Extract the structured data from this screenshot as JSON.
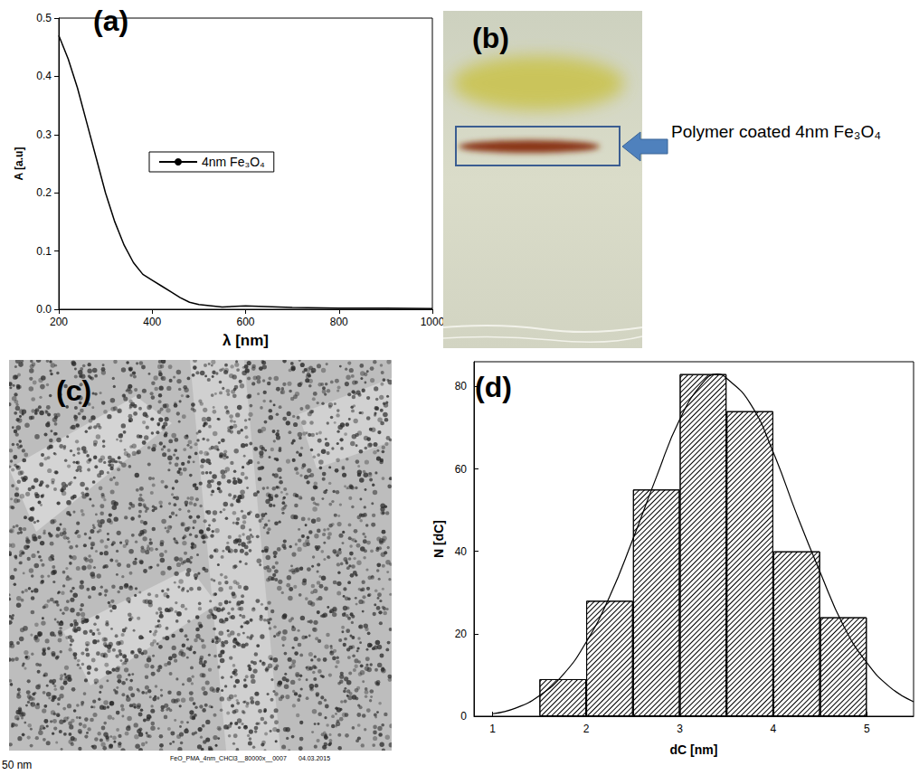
{
  "chart_data": [
    {
      "type": "line",
      "title": "(a)",
      "xlabel": "λ [nm]",
      "ylabel": "A [a.u]",
      "x": [
        200,
        220,
        240,
        260,
        280,
        300,
        320,
        340,
        360,
        380,
        400,
        420,
        440,
        460,
        480,
        500,
        550,
        600,
        700,
        800,
        900,
        1000
      ],
      "series": [
        {
          "name": "4nm Fe₃O₄",
          "color": "#000000",
          "values": [
            0.47,
            0.43,
            0.38,
            0.32,
            0.26,
            0.2,
            0.15,
            0.11,
            0.08,
            0.06,
            0.05,
            0.04,
            0.03,
            0.02,
            0.012,
            0.008,
            0.004,
            0.006,
            0.003,
            0.002,
            0.002,
            0.001
          ]
        }
      ],
      "xlim": [
        200,
        1000
      ],
      "xticks": [
        200,
        400,
        600,
        800,
        1000
      ],
      "ylim": [
        0,
        0.5
      ],
      "yticks": [
        {
          "value": 0,
          "label": "0.0"
        },
        {
          "value": 0.1,
          "label": "0.1"
        },
        {
          "value": 0.2,
          "label": "0.2"
        },
        {
          "value": 0.3,
          "label": "0.3"
        },
        {
          "value": 0.4,
          "label": "0.4"
        },
        {
          "value": 0.5,
          "label": "0.5"
        }
      ],
      "grid": false,
      "legend": "left"
    },
    {
      "type": "histogram",
      "title": "(d)",
      "xlabel": "dC [nm]",
      "ylabel": "N [dC]",
      "bins": [
        1.5,
        2,
        2.5,
        3,
        3.5,
        4,
        4.5,
        5
      ],
      "counts": [
        9,
        28,
        55,
        83,
        74,
        40,
        24
      ],
      "color": "#000000",
      "series": [
        {
          "type": "line",
          "color": "#000000",
          "x": [
            1,
            1.25,
            1.5,
            1.75,
            2,
            2.25,
            2.5,
            2.75,
            3,
            3.25,
            3.4,
            3.5,
            3.75,
            4,
            4.25,
            4.5,
            4.75,
            5,
            5.25,
            5.5
          ],
          "values": [
            0.6,
            2,
            5,
            10,
            18,
            29,
            43,
            58,
            72,
            81,
            83,
            82,
            76,
            64,
            49,
            35,
            22,
            13,
            7,
            3.5
          ]
        }
      ],
      "xlim": [
        0.8,
        5.5
      ],
      "xticks": [
        1,
        2,
        3,
        4,
        5
      ],
      "ylim": [
        0,
        86
      ],
      "yticks": [
        0,
        20,
        40,
        60,
        80
      ],
      "grid": false
    }
  ],
  "images": [
    {
      "title": "(b)",
      "annotation": "Polymer coated 4nm Fe₃O₄"
    },
    {
      "title": "(c)",
      "scale_bar": "50 nm",
      "caption": "FeO_PMA_4nm_CHCl3__80000x__0007",
      "date": "04.03.2015"
    }
  ]
}
